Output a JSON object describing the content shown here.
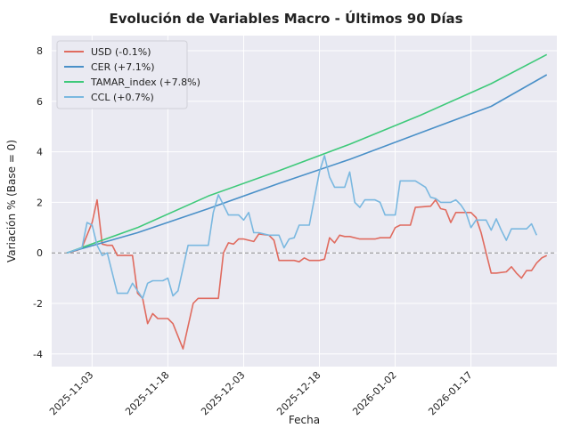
{
  "chart_data": {
    "type": "line",
    "title": "Evolución de Variables Macro - Últimos 90 Días",
    "xlabel": "Fecha",
    "ylabel": "Variación % (Base = 0)",
    "ylim": [
      -4.5,
      8.6
    ],
    "yticks": [
      -4,
      -2,
      0,
      2,
      4,
      6,
      8
    ],
    "xticks": [
      "2025-11-03",
      "2025-11-18",
      "2025-12-03",
      "2025-12-18",
      "2026-01-02",
      "2026-01-17"
    ],
    "x_range": [
      "2025-10-26",
      "2026-02-03"
    ],
    "grid": true,
    "background": "#eaeaf2",
    "baseline": {
      "value": 0,
      "style": "dashed",
      "color": "#888888"
    },
    "legend_position": "top-left",
    "series": [
      {
        "name": "USD (-0.1%)",
        "color": "#e06b5f",
        "points": [
          [
            "2025-10-29",
            0.0
          ],
          [
            "2025-10-30",
            0.05
          ],
          [
            "2025-10-31",
            0.1
          ],
          [
            "2025-11-01",
            0.2
          ],
          [
            "2025-11-03",
            1.2
          ],
          [
            "2025-11-04",
            2.1
          ],
          [
            "2025-11-05",
            0.35
          ],
          [
            "2025-11-06",
            0.3
          ],
          [
            "2025-11-07",
            0.3
          ],
          [
            "2025-11-08",
            -0.1
          ],
          [
            "2025-11-10",
            -0.1
          ],
          [
            "2025-11-11",
            -0.1
          ],
          [
            "2025-11-12",
            -1.6
          ],
          [
            "2025-11-13",
            -1.8
          ],
          [
            "2025-11-14",
            -2.8
          ],
          [
            "2025-11-15",
            -2.4
          ],
          [
            "2025-11-16",
            -2.6
          ],
          [
            "2025-11-18",
            -2.6
          ],
          [
            "2025-11-19",
            -2.8
          ],
          [
            "2025-11-20",
            -3.3
          ],
          [
            "2025-11-21",
            -3.8
          ],
          [
            "2025-11-23",
            -2.0
          ],
          [
            "2025-11-24",
            -1.8
          ],
          [
            "2025-11-28",
            -1.8
          ],
          [
            "2025-11-29",
            0.0
          ],
          [
            "2025-11-30",
            0.4
          ],
          [
            "2025-12-01",
            0.35
          ],
          [
            "2025-12-02",
            0.55
          ],
          [
            "2025-12-03",
            0.55
          ],
          [
            "2025-12-04",
            0.5
          ],
          [
            "2025-12-05",
            0.45
          ],
          [
            "2025-12-06",
            0.75
          ],
          [
            "2025-12-08",
            0.7
          ],
          [
            "2025-12-09",
            0.5
          ],
          [
            "2025-12-10",
            -0.3
          ],
          [
            "2025-12-11",
            -0.3
          ],
          [
            "2025-12-13",
            -0.3
          ],
          [
            "2025-12-14",
            -0.35
          ],
          [
            "2025-12-15",
            -0.2
          ],
          [
            "2025-12-16",
            -0.3
          ],
          [
            "2025-12-18",
            -0.3
          ],
          [
            "2025-12-19",
            -0.25
          ],
          [
            "2025-12-20",
            0.6
          ],
          [
            "2025-12-21",
            0.4
          ],
          [
            "2025-12-22",
            0.7
          ],
          [
            "2025-12-23",
            0.65
          ],
          [
            "2025-12-24",
            0.65
          ],
          [
            "2025-12-26",
            0.55
          ],
          [
            "2025-12-29",
            0.55
          ],
          [
            "2025-12-30",
            0.6
          ],
          [
            "2026-01-01",
            0.6
          ],
          [
            "2026-01-02",
            1.0
          ],
          [
            "2026-01-03",
            1.1
          ],
          [
            "2026-01-05",
            1.1
          ],
          [
            "2026-01-06",
            1.8
          ],
          [
            "2026-01-09",
            1.85
          ],
          [
            "2026-01-10",
            2.1
          ],
          [
            "2026-01-11",
            1.75
          ],
          [
            "2026-01-12",
            1.7
          ],
          [
            "2026-01-13",
            1.2
          ],
          [
            "2026-01-14",
            1.6
          ],
          [
            "2026-01-16",
            1.6
          ],
          [
            "2026-01-17",
            1.6
          ],
          [
            "2026-01-18",
            1.4
          ],
          [
            "2026-01-19",
            0.8
          ],
          [
            "2026-01-20",
            0.0
          ],
          [
            "2026-01-21",
            -0.8
          ],
          [
            "2026-01-22",
            -0.8
          ],
          [
            "2026-01-24",
            -0.75
          ],
          [
            "2026-01-25",
            -0.55
          ],
          [
            "2026-01-26",
            -0.8
          ],
          [
            "2026-01-27",
            -1.0
          ],
          [
            "2026-01-28",
            -0.7
          ],
          [
            "2026-01-29",
            -0.7
          ],
          [
            "2026-01-30",
            -0.4
          ],
          [
            "2026-01-31",
            -0.2
          ],
          [
            "2026-02-01",
            -0.1
          ]
        ]
      },
      {
        "name": "CER (+7.1%)",
        "color": "#4a90c8",
        "points": [
          [
            "2025-10-29",
            0.0
          ],
          [
            "2025-11-12",
            0.8
          ],
          [
            "2025-11-26",
            1.75
          ],
          [
            "2025-12-10",
            2.75
          ],
          [
            "2025-12-24",
            3.7
          ],
          [
            "2026-01-07",
            4.75
          ],
          [
            "2026-01-21",
            5.8
          ],
          [
            "2026-02-01",
            7.05
          ]
        ]
      },
      {
        "name": "TAMAR_index (+7.8%)",
        "color": "#3ec97a",
        "points": [
          [
            "2025-10-29",
            0.0
          ],
          [
            "2025-11-12",
            1.0
          ],
          [
            "2025-11-26",
            2.25
          ],
          [
            "2025-12-10",
            3.25
          ],
          [
            "2025-12-24",
            4.3
          ],
          [
            "2026-01-07",
            5.45
          ],
          [
            "2026-01-21",
            6.7
          ],
          [
            "2026-02-01",
            7.85
          ]
        ]
      },
      {
        "name": "CCL (+0.7%)",
        "color": "#7ab8e0",
        "points": [
          [
            "2025-10-29",
            0.0
          ],
          [
            "2025-11-01",
            0.2
          ],
          [
            "2025-11-02",
            1.2
          ],
          [
            "2025-11-03",
            1.1
          ],
          [
            "2025-11-04",
            0.3
          ],
          [
            "2025-11-05",
            -0.1
          ],
          [
            "2025-11-06",
            0.0
          ],
          [
            "2025-11-08",
            -1.6
          ],
          [
            "2025-11-10",
            -1.6
          ],
          [
            "2025-11-11",
            -1.2
          ],
          [
            "2025-11-13",
            -1.8
          ],
          [
            "2025-11-14",
            -1.2
          ],
          [
            "2025-11-15",
            -1.1
          ],
          [
            "2025-11-17",
            -1.1
          ],
          [
            "2025-11-18",
            -1.0
          ],
          [
            "2025-11-19",
            -1.7
          ],
          [
            "2025-11-20",
            -1.5
          ],
          [
            "2025-11-22",
            0.3
          ],
          [
            "2025-11-24",
            0.3
          ],
          [
            "2025-11-26",
            0.3
          ],
          [
            "2025-11-27",
            1.6
          ],
          [
            "2025-11-28",
            2.3
          ],
          [
            "2025-11-29",
            1.9
          ],
          [
            "2025-11-30",
            1.5
          ],
          [
            "2025-12-02",
            1.5
          ],
          [
            "2025-12-03",
            1.3
          ],
          [
            "2025-12-04",
            1.6
          ],
          [
            "2025-12-05",
            0.8
          ],
          [
            "2025-12-06",
            0.8
          ],
          [
            "2025-12-08",
            0.7
          ],
          [
            "2025-12-10",
            0.7
          ],
          [
            "2025-12-11",
            0.2
          ],
          [
            "2025-12-12",
            0.55
          ],
          [
            "2025-12-13",
            0.6
          ],
          [
            "2025-12-14",
            1.1
          ],
          [
            "2025-12-16",
            1.1
          ],
          [
            "2025-12-18",
            3.2
          ],
          [
            "2025-12-19",
            3.85
          ],
          [
            "2025-12-20",
            3.0
          ],
          [
            "2025-12-21",
            2.6
          ],
          [
            "2025-12-23",
            2.6
          ],
          [
            "2025-12-24",
            3.2
          ],
          [
            "2025-12-25",
            2.0
          ],
          [
            "2025-12-26",
            1.8
          ],
          [
            "2025-12-27",
            2.1
          ],
          [
            "2025-12-29",
            2.1
          ],
          [
            "2025-12-30",
            2.0
          ],
          [
            "2025-12-31",
            1.5
          ],
          [
            "2026-01-02",
            1.5
          ],
          [
            "2026-01-03",
            2.85
          ],
          [
            "2026-01-05",
            2.85
          ],
          [
            "2026-01-06",
            2.85
          ],
          [
            "2026-01-08",
            2.6
          ],
          [
            "2026-01-09",
            2.2
          ],
          [
            "2026-01-10",
            2.15
          ],
          [
            "2026-01-11",
            2.0
          ],
          [
            "2026-01-13",
            2.0
          ],
          [
            "2026-01-14",
            2.1
          ],
          [
            "2026-01-15",
            1.9
          ],
          [
            "2026-01-16",
            1.6
          ],
          [
            "2026-01-17",
            1.0
          ],
          [
            "2026-01-18",
            1.3
          ],
          [
            "2026-01-20",
            1.3
          ],
          [
            "2026-01-21",
            0.9
          ],
          [
            "2026-01-22",
            1.35
          ],
          [
            "2026-01-23",
            0.9
          ],
          [
            "2026-01-24",
            0.5
          ],
          [
            "2026-01-25",
            0.95
          ],
          [
            "2026-01-27",
            0.95
          ],
          [
            "2026-01-28",
            0.95
          ],
          [
            "2026-01-29",
            1.15
          ],
          [
            "2026-01-30",
            0.7
          ]
        ]
      }
    ]
  }
}
